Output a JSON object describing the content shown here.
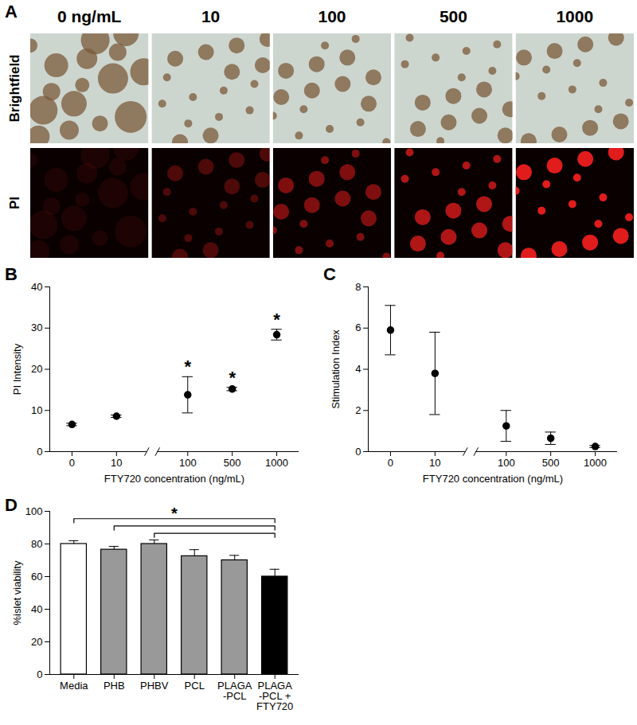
{
  "chart_data": [
    {
      "type": "image_grid",
      "title": "A",
      "columns": [
        "0 ng/mL",
        "10",
        "100",
        "500",
        "1000"
      ],
      "rows": [
        "Brightfield",
        "PI"
      ]
    },
    {
      "type": "scatter",
      "title": "B",
      "xlabel": "FTY720 concentration (ng/mL)",
      "ylabel": "PI Intensity",
      "categories": [
        "0",
        "10",
        "100",
        "500",
        "1000"
      ],
      "values": [
        6.6,
        8.6,
        13.8,
        15.2,
        28.4
      ],
      "errors": [
        0.3,
        0.3,
        4.4,
        0.4,
        1.3
      ],
      "significance": [
        null,
        null,
        "*",
        "*",
        "*"
      ],
      "ylim": [
        0,
        40
      ],
      "yticks": [
        0,
        10,
        20,
        30,
        40
      ],
      "color": "#000000",
      "marker": "circle"
    },
    {
      "type": "scatter",
      "title": "C",
      "xlabel": "FTY720 concentration (ng/mL)",
      "ylabel": "Stimulation Index",
      "categories": [
        "0",
        "10",
        "100",
        "500",
        "1000"
      ],
      "values": [
        5.9,
        3.8,
        1.25,
        0.65,
        0.25
      ],
      "errors": [
        1.2,
        2.0,
        0.75,
        0.3,
        0.05
      ],
      "ylim": [
        0,
        8
      ],
      "yticks": [
        0,
        2,
        4,
        6,
        8
      ],
      "color": "#000000",
      "marker": "circle"
    },
    {
      "type": "bar",
      "title": "D",
      "ylabel": "%islet viability",
      "categories": [
        "Media",
        "PHB",
        "PHBV",
        "PCL",
        "PLAGA\n-PCL",
        "PLAGA\n-PCL +\nFTY720"
      ],
      "values": [
        80,
        76.5,
        80,
        72.5,
        70,
        60
      ],
      "errors": [
        2,
        2,
        2.5,
        4,
        3,
        4.5
      ],
      "colors": [
        "#ffffff",
        "#999999",
        "#999999",
        "#999999",
        "#999999",
        "#000000"
      ],
      "brackets": [
        {
          "from": 0,
          "to": 5,
          "label": "*"
        },
        {
          "from": 1,
          "to": 5
        },
        {
          "from": 2,
          "to": 5
        }
      ],
      "ylim": [
        0,
        100
      ],
      "yticks": [
        0,
        20,
        40,
        60,
        80,
        100
      ]
    }
  ]
}
